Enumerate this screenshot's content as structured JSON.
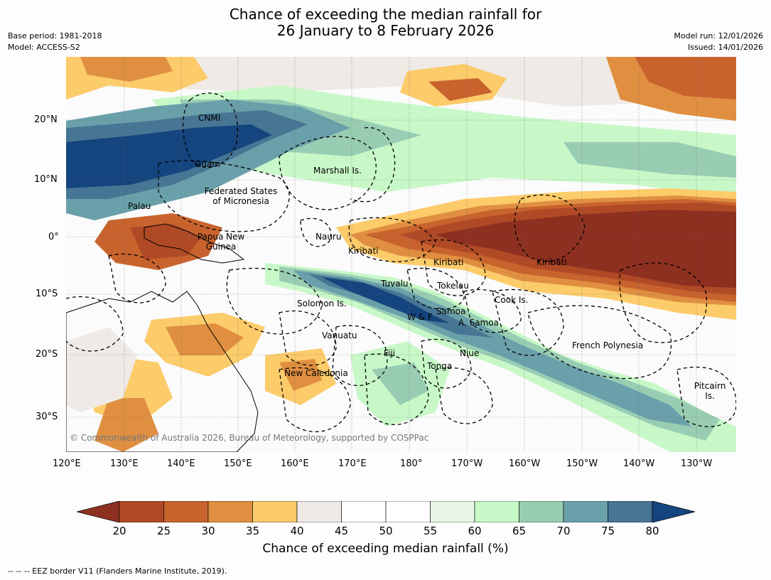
{
  "title": {
    "line1": "Chance of exceeding the median rainfall for",
    "line2": "26 January to 8 February 2026"
  },
  "meta_left": {
    "base_period": "Base period: 1981-2018",
    "model": "Model: ACCESS-S2"
  },
  "meta_right": {
    "model_run": "Model run: 12/01/2026",
    "issued": "Issued: 14/01/2026"
  },
  "map": {
    "lat_ticks": [
      "20°N",
      "10°N",
      "0°",
      "10°S",
      "20°S",
      "30°S"
    ],
    "lon_ticks": [
      "120°E",
      "130°E",
      "140°E",
      "150°E",
      "160°E",
      "170°E",
      "180°",
      "170°W",
      "160°W",
      "150°W",
      "140°W",
      "130°W"
    ],
    "regions": [
      "CNMI",
      "Guam",
      "Marshall Is.",
      "Federated States",
      "of Micronesia",
      "Palau",
      "Papua New",
      "Guinea",
      "Nauru",
      "Kiribati",
      "Kiribati",
      "Kiribati",
      "Tuvalu",
      "Tokelau",
      "Cook Is.",
      "Solomon Is.",
      "W & F",
      "Samoa",
      "A. Samoa",
      "Vanuatu",
      "Fiji",
      "Niue",
      "French Polynesia",
      "Tonga",
      "New Caledonia",
      "Pitcairn",
      "Is."
    ],
    "credit": "© Commonwealth of Australia 2026, Bureau of Meteorology, supported by COSPPac"
  },
  "colorbar": {
    "ticks": [
      "20",
      "25",
      "30",
      "35",
      "40",
      "45",
      "50",
      "55",
      "60",
      "65",
      "70",
      "75",
      "80"
    ],
    "colors": [
      "#b04a26",
      "#c8632e",
      "#e08f41",
      "#fccb6a",
      "#efeae5",
      "#ffffff",
      "#ffffff",
      "#e8f6e8",
      "#c8f8c8",
      "#99cdb3",
      "#6aa0aa",
      "#477594"
    ],
    "low_color": "#8e3020",
    "high_color": "#15457e",
    "label": "Chance of exceeding median rainfall (%)"
  },
  "footer": {
    "eez_note": "-- -- -- EEZ border V11 (Flanders Marine Institute, 2019)."
  }
}
